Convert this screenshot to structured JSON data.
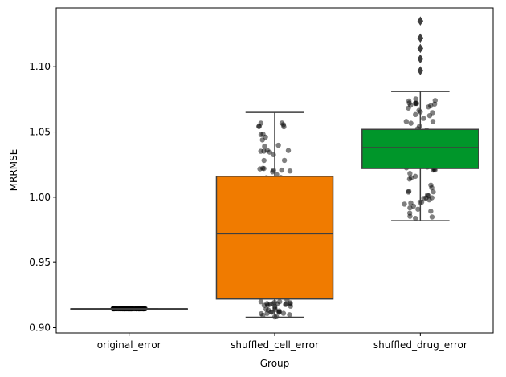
{
  "chart_data": {
    "type": "box",
    "xlabel": "Group",
    "ylabel": "MRRMSE",
    "categories": [
      "original_error",
      "shuffled_cell_error",
      "shuffled_drug_error"
    ],
    "ylim": [
      0.896,
      1.145
    ],
    "yticks": [
      0.9,
      0.95,
      1.0,
      1.05,
      1.1
    ],
    "ytick_labels": [
      "0.90",
      "0.95",
      "1.00",
      "1.05",
      "1.10"
    ],
    "grid": false,
    "legend": "none",
    "boxes": [
      {
        "category": "original_error",
        "color": "#1f77b4",
        "min": 0.9145,
        "q1": 0.9145,
        "median": 0.9145,
        "q3": 0.9145,
        "max": 0.9145,
        "outliers": []
      },
      {
        "category": "shuffled_cell_error",
        "color": "#f07b00",
        "min": 0.908,
        "q1": 0.922,
        "median": 0.972,
        "q3": 1.016,
        "max": 1.065,
        "outliers": []
      },
      {
        "category": "shuffled_drug_error",
        "color": "#00962a",
        "min": 0.982,
        "q1": 1.022,
        "median": 1.038,
        "q3": 1.052,
        "max": 1.081,
        "outliers": [
          1.097,
          1.106,
          1.114,
          1.122,
          1.135
        ]
      }
    ],
    "points_color": "#000000"
  }
}
